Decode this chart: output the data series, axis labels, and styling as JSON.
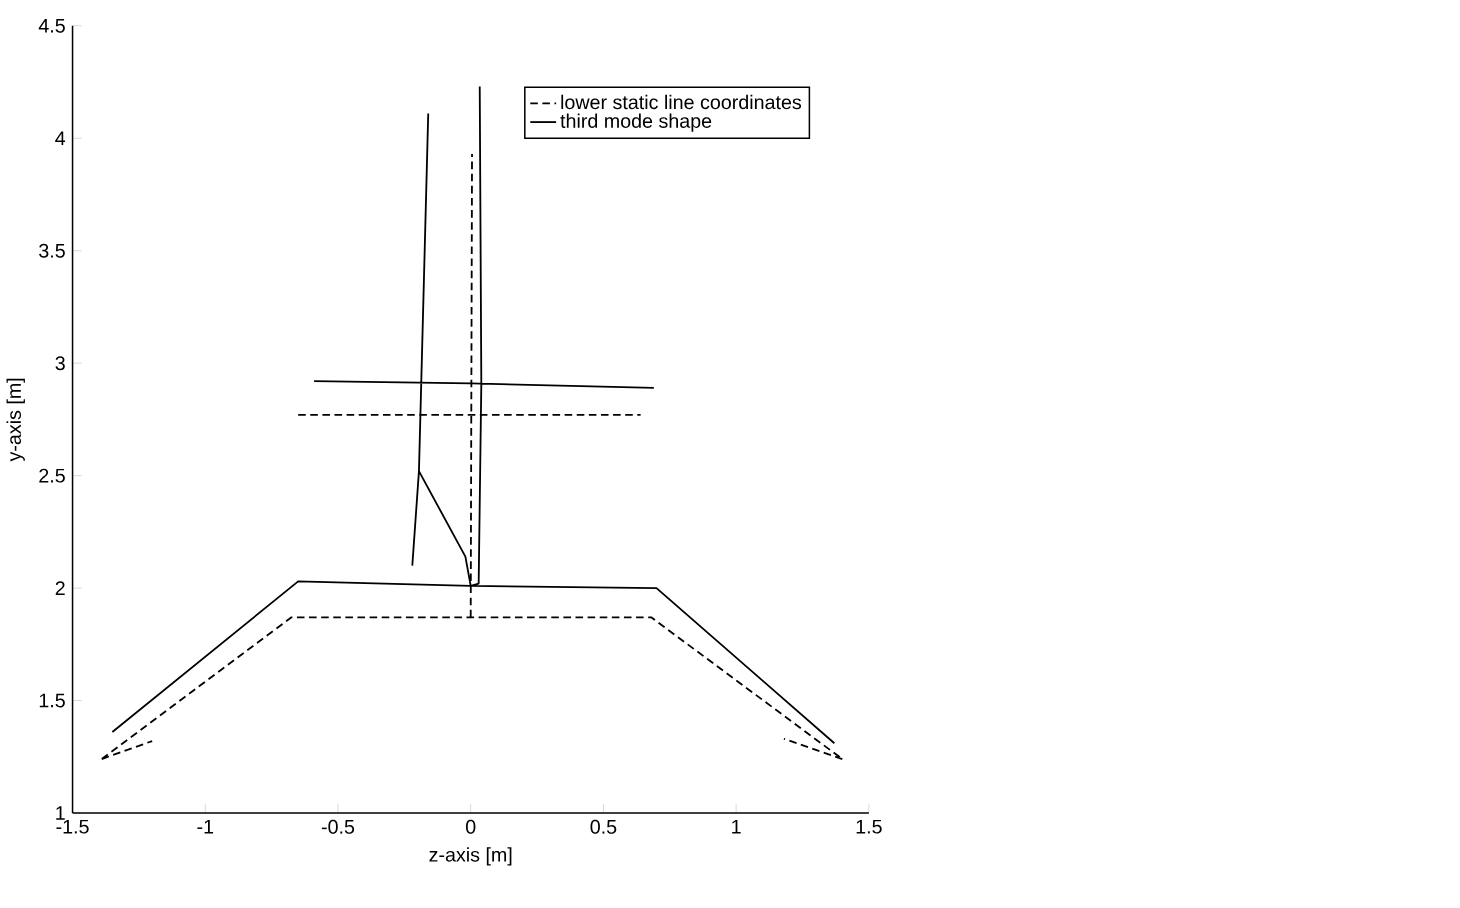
{
  "chart_data": {
    "type": "line",
    "xlabel": "z-axis [m]",
    "ylabel": "y-axis [m]",
    "xlim": [
      -1.5,
      1.5
    ],
    "ylim": [
      1,
      4.5
    ],
    "xticks": [
      -1.5,
      -1,
      -0.5,
      0,
      0.5,
      1,
      1.5
    ],
    "yticks": [
      1,
      1.5,
      2,
      2.5,
      3,
      3.5,
      4,
      4.5
    ],
    "grid": false,
    "legend": "top right",
    "marker": "none",
    "series": [
      {
        "name": "lower static line coordinates",
        "color": "#000000",
        "line_style": "dashed",
        "x": [
          -1.39,
          -0.675,
          0.68,
          1.4,
          null,
          -1.39,
          -1.2,
          null,
          1.4,
          1.18,
          null,
          -0.65,
          0.64,
          null,
          0,
          0.005
        ],
        "values": [
          1.24,
          1.87,
          1.87,
          1.24,
          null,
          1.24,
          1.32,
          null,
          1.24,
          1.33,
          null,
          2.77,
          2.77,
          null,
          1.87,
          3.93
        ]
      },
      {
        "name": "third mode shape",
        "color": "#000000",
        "line_style": "solid",
        "x": [
          -1.35,
          -0.65,
          0,
          0.7,
          1.37,
          null,
          -0.59,
          0,
          0.69,
          null,
          -0.16,
          -0.195,
          -0.22,
          null,
          -0.195,
          -0.02,
          0,
          null,
          0,
          0.03,
          0.04,
          0.034
        ],
        "values": [
          1.36,
          2.03,
          2.01,
          2.0,
          1.31,
          null,
          2.92,
          2.91,
          2.89,
          null,
          4.11,
          2.52,
          2.1,
          null,
          2.52,
          2.14,
          2.01,
          null,
          2.01,
          2.02,
          2.91,
          4.23
        ]
      }
    ]
  }
}
